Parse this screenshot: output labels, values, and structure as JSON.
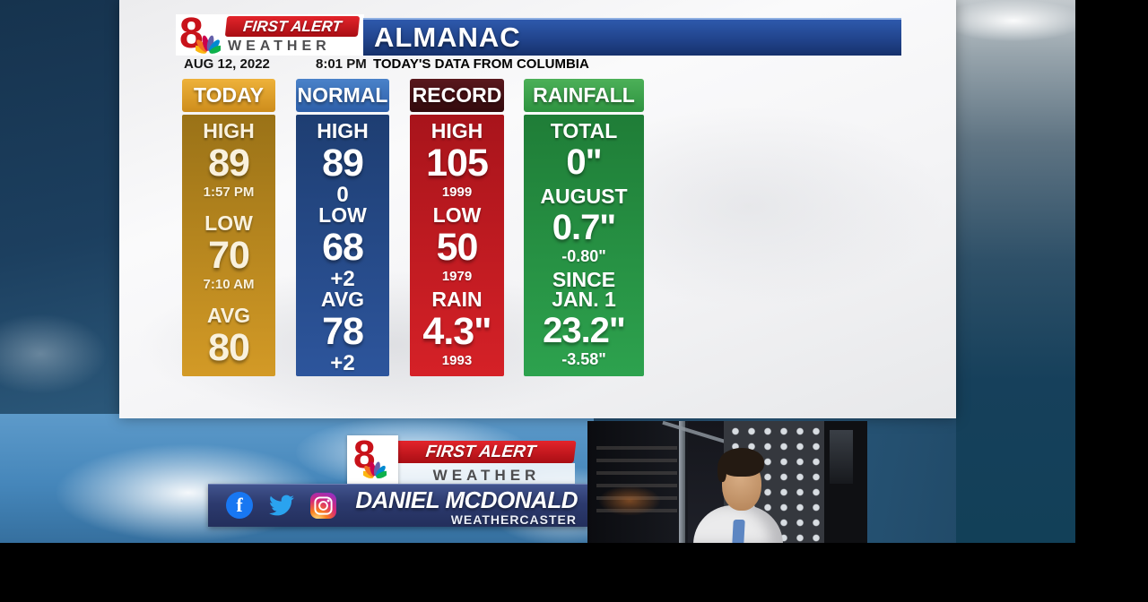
{
  "brand": {
    "station_number": "8",
    "line1": "FIRST ALERT",
    "line2": "WEATHER"
  },
  "header": {
    "title": "ALMANAC",
    "date": "AUG 12, 2022",
    "time": "8:01 PM",
    "source_note": "TODAY'S DATA FROM COLUMBIA"
  },
  "almanac": {
    "columns": [
      {
        "id": "today",
        "title": "TODAY",
        "colors": {
          "header_top": "#eeb23a",
          "header_bottom": "#cd8d1c",
          "body_top": "#9a7217",
          "body_bottom": "#d39a26"
        },
        "sections": [
          {
            "label": "HIGH",
            "value": "89",
            "sub": "1:57 PM"
          },
          {
            "label": "LOW",
            "value": "70",
            "sub": "7:10 AM"
          },
          {
            "label": "AVG",
            "value": "80",
            "sub": ""
          }
        ]
      },
      {
        "id": "normal",
        "title": "NORMAL",
        "colors": {
          "header_top": "#4a82c9",
          "header_bottom": "#2d5fa9",
          "body_top": "#1e3e72",
          "body_bottom": "#2d559c"
        },
        "sections": [
          {
            "label": "HIGH",
            "value": "89",
            "sub": "0"
          },
          {
            "label": "LOW",
            "value": "68",
            "sub": "+2"
          },
          {
            "label": "AVG",
            "value": "78",
            "sub": "+2"
          }
        ]
      },
      {
        "id": "record",
        "title": "RECORD",
        "colors": {
          "header_top": "#5a181d",
          "header_bottom": "#320a0d",
          "body_top": "#a8141b",
          "body_bottom": "#d52127"
        },
        "sections": [
          {
            "label": "HIGH",
            "value": "105",
            "sub": "1999"
          },
          {
            "label": "LOW",
            "value": "50",
            "sub": "1979"
          },
          {
            "label": "RAIN",
            "value": "4.3\"",
            "sub": "1993"
          }
        ]
      },
      {
        "id": "rainfall",
        "title": "RAINFALL",
        "colors": {
          "header_top": "#4cb058",
          "header_bottom": "#2e9340",
          "body_top": "#1f7d37",
          "body_bottom": "#2da24e"
        },
        "sections": [
          {
            "label": "TOTAL",
            "value": "0\"",
            "sub": ""
          },
          {
            "label": "AUGUST",
            "value": "0.7\"",
            "sub": "-0.80\""
          },
          {
            "label": "SINCE\nJAN. 1",
            "value": "23.2\"",
            "sub": "-3.58\""
          }
        ]
      }
    ]
  },
  "lower_third": {
    "name": "DANIEL MCDONALD",
    "role": "WEATHERCASTER",
    "social_icons": [
      "facebook-icon",
      "twitter-icon",
      "instagram-icon"
    ]
  },
  "chart_data": {
    "type": "table",
    "title": "ALMANAC",
    "subtitle": "TODAY'S DATA FROM COLUMBIA",
    "as_of": "AUG 12, 2022 8:01 PM",
    "series": [
      {
        "name": "TODAY",
        "rows": [
          {
            "label": "HIGH",
            "value": 89,
            "note": "1:57 PM"
          },
          {
            "label": "LOW",
            "value": 70,
            "note": "7:10 AM"
          },
          {
            "label": "AVG",
            "value": 80,
            "note": ""
          }
        ]
      },
      {
        "name": "NORMAL",
        "rows": [
          {
            "label": "HIGH",
            "value": 89,
            "note": "0"
          },
          {
            "label": "LOW",
            "value": 68,
            "note": "+2"
          },
          {
            "label": "AVG",
            "value": 78,
            "note": "+2"
          }
        ]
      },
      {
        "name": "RECORD",
        "rows": [
          {
            "label": "HIGH",
            "value": 105,
            "note": "1999"
          },
          {
            "label": "LOW",
            "value": 50,
            "note": "1979"
          },
          {
            "label": "RAIN",
            "value": "4.3\"",
            "note": "1993"
          }
        ]
      },
      {
        "name": "RAINFALL",
        "rows": [
          {
            "label": "TOTAL",
            "value": "0\"",
            "note": ""
          },
          {
            "label": "AUGUST",
            "value": "0.7\"",
            "note": "-0.80\""
          },
          {
            "label": "SINCE JAN. 1",
            "value": "23.2\"",
            "note": "-3.58\""
          }
        ]
      }
    ]
  }
}
